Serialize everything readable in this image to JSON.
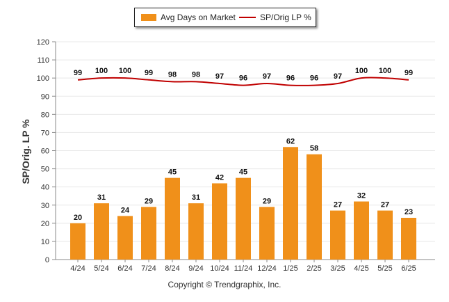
{
  "colors": {
    "bar": "#F0901A",
    "line": "#C00000",
    "grid": "#e8e8e8",
    "axis": "#888888"
  },
  "legend": {
    "bar_label": "Avg Days on Market",
    "line_label": "SP/Orig LP %"
  },
  "footer": {
    "copyright": "Copyright © Trendgraphix, Inc."
  },
  "chart_data": {
    "type": "bar",
    "ylabel": "SP/Orig. LP %",
    "ylim": [
      0,
      120
    ],
    "yticks": [
      0,
      10,
      20,
      30,
      40,
      50,
      60,
      70,
      80,
      90,
      100,
      110,
      120
    ],
    "grid": true,
    "legend_position": "top-center",
    "categories": [
      "4/24",
      "5/24",
      "6/24",
      "7/24",
      "8/24",
      "9/24",
      "10/24",
      "11/24",
      "12/24",
      "1/25",
      "2/25",
      "3/25",
      "4/25",
      "5/25",
      "6/25"
    ],
    "series": [
      {
        "name": "Avg Days on Market",
        "type": "bar",
        "values": [
          20,
          31,
          24,
          29,
          45,
          31,
          42,
          45,
          29,
          62,
          58,
          27,
          32,
          27,
          23
        ]
      },
      {
        "name": "SP/Orig LP %",
        "type": "line",
        "values": [
          99,
          100,
          100,
          99,
          98,
          98,
          97,
          96,
          97,
          96,
          96,
          97,
          100,
          100,
          99
        ]
      }
    ]
  }
}
